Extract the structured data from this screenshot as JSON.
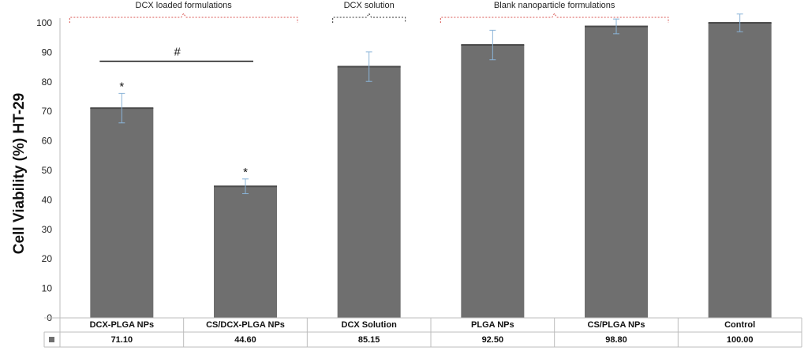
{
  "chart_data": {
    "type": "bar",
    "ylabel": "Cell Viability (%) HT-29",
    "ylim": [
      0,
      100
    ],
    "yticks": [
      0,
      10,
      20,
      30,
      40,
      50,
      60,
      70,
      80,
      90,
      100
    ],
    "categories": [
      "DCX-PLGA NPs",
      "CS/DCX-PLGA NPs",
      "DCX Solution",
      "PLGA NPs",
      "CS/PLGA NPs",
      "Control"
    ],
    "values": [
      71.1,
      44.6,
      85.15,
      92.5,
      98.8,
      100.0
    ],
    "value_labels": [
      "71.10",
      "44.60",
      "85.15",
      "92.50",
      "98.80",
      "100.00"
    ],
    "error": [
      5.0,
      2.5,
      5.0,
      5.0,
      2.5,
      3.0
    ],
    "bar_color": "#6f6f6f",
    "error_color": "#8ab4d8",
    "significance": [
      {
        "category_index": 0,
        "symbol": "*"
      },
      {
        "category_index": 1,
        "symbol": "*"
      }
    ],
    "comparison": {
      "from": 0,
      "to": 1,
      "symbol": "#",
      "level": 87
    },
    "groups": [
      {
        "label": "DCX loaded formulations",
        "from": 0,
        "to": 1,
        "color": "#d9534f",
        "style": "dashed-red"
      },
      {
        "label": "DCX solution",
        "from": 2,
        "to": 2,
        "color": "#333333",
        "style": "dashed-black"
      },
      {
        "label": "Blank nanoparticle formulations",
        "from": 3,
        "to": 4,
        "color": "#d9534f",
        "style": "dashed-red"
      }
    ]
  }
}
